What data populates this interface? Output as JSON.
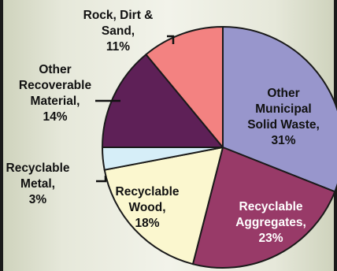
{
  "chart_data": {
    "type": "pie",
    "slices": [
      {
        "label": "Other Municipal Solid Waste",
        "lines": [
          "Other",
          "Municipal",
          "Solid Waste,",
          "31%"
        ],
        "value": 31,
        "color": "#9896cc",
        "text_color": "#111111"
      },
      {
        "label": "Recyclable Aggregates",
        "lines": [
          "Recyclable",
          "Aggregates,",
          "23%"
        ],
        "value": 23,
        "color": "#983a68",
        "text_color": "#ffffff"
      },
      {
        "label": "Recyclable Wood",
        "lines": [
          "Recyclable",
          "Wood,",
          "18%"
        ],
        "value": 18,
        "color": "#fbf7cf",
        "text_color": "#111111"
      },
      {
        "label": "Recyclable Metal",
        "lines": [
          "Recyclable",
          "Metal,",
          "3%"
        ],
        "value": 3,
        "color": "#d6eef8",
        "text_color": "#111111"
      },
      {
        "label": "Other Recoverable Material",
        "lines": [
          "Other",
          "Recoverable",
          "Material,",
          "14%"
        ],
        "value": 14,
        "color": "#5e2057",
        "text_color": "#111111"
      },
      {
        "label": "Rock, Dirt & Sand",
        "lines": [
          "Rock, Dirt &",
          "Sand,",
          "11%"
        ],
        "value": 11,
        "color": "#f38281",
        "text_color": "#111111"
      }
    ],
    "start_angle_deg": 0,
    "direction": "clockwise",
    "label_placement": "inside-or-outside-with-leader-lines"
  }
}
